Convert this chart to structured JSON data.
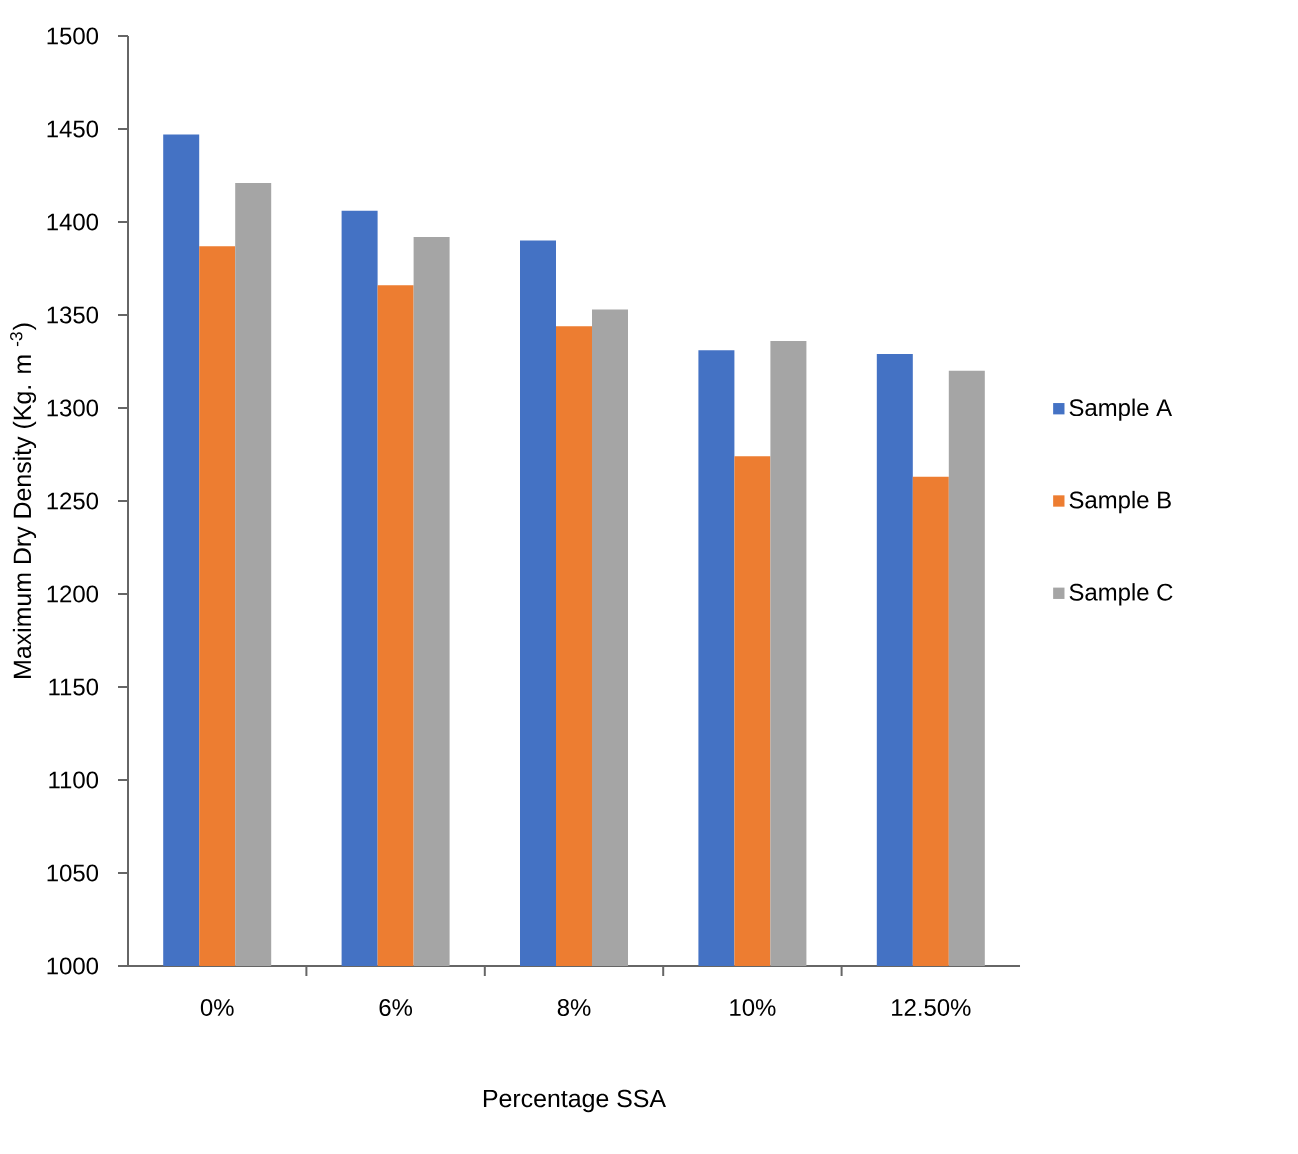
{
  "chart_data": {
    "type": "bar",
    "xlabel": "Percentage SSA",
    "ylabel": "Maximum Dry Density (Kg. m $^{-3}$)",
    "categories": [
      "0%",
      "6%",
      "8%",
      "10%",
      "12.50%"
    ],
    "series": [
      {
        "name": "Sample A",
        "color": "#4472c4",
        "values": [
          1447,
          1406,
          1390,
          1331,
          1329
        ]
      },
      {
        "name": "Sample B",
        "color": "#ed7d31",
        "values": [
          1387,
          1366,
          1344,
          1274,
          1263
        ]
      },
      {
        "name": "Sample C",
        "color": "#a5a5a5",
        "values": [
          1421,
          1392,
          1353,
          1336,
          1320
        ]
      }
    ],
    "ylim": [
      1000,
      1500
    ],
    "yticks": [
      1000,
      1050,
      1100,
      1150,
      1200,
      1250,
      1300,
      1350,
      1400,
      1450,
      1500
    ],
    "grid": false,
    "legend": "right"
  }
}
